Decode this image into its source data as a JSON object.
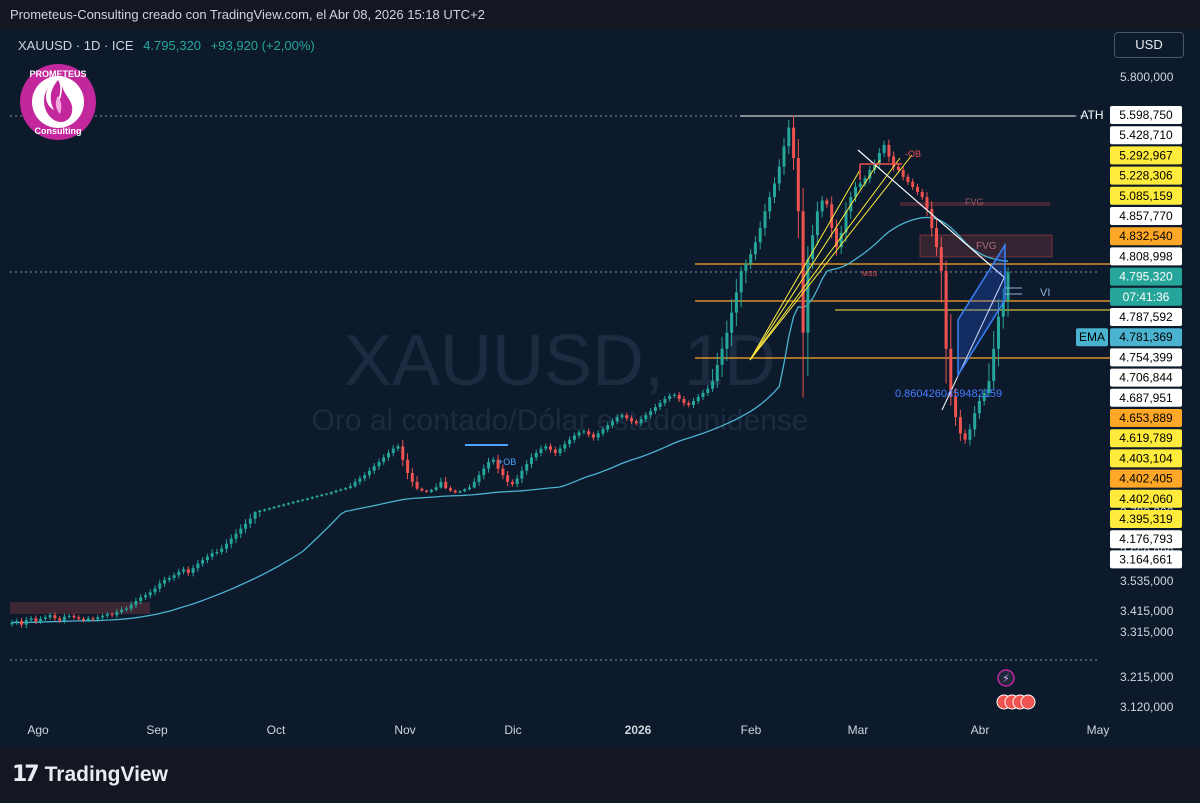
{
  "header": {
    "attribution": "Prometeus-Consulting creado con TradingView.com, el Abr 08, 2026 15:18 UTC+2"
  },
  "symbol": {
    "label": "XAUUSD · 1D · ICE",
    "price": "4.795,320",
    "change": "+93,920 (+2,00%)"
  },
  "currency_button": "USD",
  "logo": {
    "top": "PROMETEUS",
    "bottom": "Consulting"
  },
  "watermark": {
    "title": "XAUUSD, 1D",
    "subtitle": "Oro al contado/Dólar estadounidense"
  },
  "footer": {
    "brand": "TradingView"
  },
  "colors": {
    "bg": "#0c1a2c",
    "up": "#26a69a",
    "down": "#ef5350",
    "ema": "#4ab3cf",
    "orange": "#ffa726",
    "yellow": "#ffeb3b",
    "blue": "#2962ff"
  },
  "chart_data": {
    "type": "candlestick",
    "x_ticks": [
      "Ago",
      "Sep",
      "Oct",
      "Nov",
      "Dic",
      "2026",
      "Feb",
      "Mar",
      "Abr",
      "May"
    ],
    "y_ticks": [
      "5.800,000",
      "3.780,000",
      "3.660,000",
      "3.535,000",
      "3.415,000",
      "3.315,000",
      "3.215,000",
      "3.120,000"
    ],
    "ylim": [
      3120,
      5800
    ],
    "last_close": 4795.32,
    "ema_value": 4781.369,
    "ath": 5598.75,
    "price_labels": [
      {
        "text": "5.598,750",
        "prefix": "ATH",
        "style": "white-dark"
      },
      {
        "text": "5.428,710",
        "style": "white"
      },
      {
        "text": "5.292,967",
        "style": "yellow"
      },
      {
        "text": "5.228,306",
        "style": "yellow"
      },
      {
        "text": "5.085,159",
        "style": "yellow"
      },
      {
        "text": "4.857,770",
        "style": "white"
      },
      {
        "text": "4.832,540",
        "style": "orange"
      },
      {
        "text": "4.808,998",
        "style": "white"
      },
      {
        "text": "4.795,320",
        "style": "green"
      },
      {
        "text": "07:41:36",
        "style": "green-sub"
      },
      {
        "text": "4.787,592",
        "style": "white"
      },
      {
        "text": "4.781,369",
        "prefix": "EMA",
        "style": "teal"
      },
      {
        "text": "4.754,399",
        "style": "white"
      },
      {
        "text": "4.706,844",
        "style": "white"
      },
      {
        "text": "4.687,951",
        "style": "white"
      },
      {
        "text": "4.653,889",
        "style": "orange"
      },
      {
        "text": "4.619,789",
        "style": "yellow"
      },
      {
        "text": "4.403,104",
        "style": "yellow"
      },
      {
        "text": "4.402,405",
        "style": "orange"
      },
      {
        "text": "4.402,060",
        "style": "yellow"
      },
      {
        "text": "4.395,319",
        "style": "yellow"
      },
      {
        "text": "4.176,793",
        "style": "white"
      },
      {
        "text": "3.164,661",
        "style": "white"
      }
    ],
    "annotations": {
      "ob_bear": "-OB",
      "ob_bull": "+OB",
      "fvg": "FVG",
      "mss": "MSS",
      "vi": "VI",
      "fib": "0.8604260459482159"
    },
    "closes": [
      3360,
      3368,
      3350,
      3372,
      3380,
      3365,
      3378,
      3385,
      3395,
      3380,
      3370,
      3388,
      3392,
      3385,
      3378,
      3372,
      3380,
      3375,
      3385,
      3392,
      3400,
      3395,
      3410,
      3420,
      3425,
      3440,
      3455,
      3470,
      3478,
      3490,
      3505,
      3525,
      3540,
      3548,
      3560,
      3575,
      3585,
      3570,
      3590,
      3610,
      3625,
      3640,
      3655,
      3660,
      3670,
      3685,
      3700,
      3715,
      3730,
      3745,
      3760,
      3780,
      3800,
      3820,
      3840,
      3860,
      3880,
      3900,
      3920,
      3940,
      3960,
      3975,
      3995,
      4015,
      4035,
      4055,
      4070,
      4095,
      4120,
      4140,
      4160,
      4180,
      4200,
      4215,
      4230,
      4250,
      4270,
      4290,
      4310,
      4330,
      4350,
      4360,
      4300,
      4240,
      4200,
      4150,
      4120,
      4100,
      4130,
      4170,
      4200,
      4160,
      4120,
      4090,
      4110,
      4140,
      4170,
      4200,
      4230,
      4260,
      4290,
      4300,
      4260,
      4230,
      4200,
      4190,
      4215,
      4250,
      4280,
      4310,
      4330,
      4350,
      4360,
      4345,
      4330,
      4350,
      4370,
      4390,
      4410,
      4425,
      4430,
      4415,
      4400,
      4420,
      4440,
      4460,
      4480,
      4500,
      4510,
      4495,
      4480,
      4470,
      4490,
      4510,
      4530,
      4550,
      4570,
      4590,
      4605,
      4610,
      4590,
      4570,
      4560,
      4580,
      4600,
      4620,
      4640,
      4660,
      4680,
      4700,
      4720,
      4745,
      4770,
      4800,
      4830,
      4870,
      4920,
      4980,
      5050,
      5120,
      5200,
      5300,
      5420,
      5530,
      5350,
      5050,
      4720,
      4850,
      4950,
      5050,
      5100,
      5080,
      4980,
      4900,
      4960,
      5050,
      5120,
      5180,
      5200,
      5230,
      5280,
      5320,
      5380,
      5428,
      5360,
      5300,
      5280,
      5240,
      5210,
      5180,
      5150,
      5120,
      5060,
      4980,
      4900,
      4800,
      4700,
      4600,
      4500,
      4420,
      4390,
      4440,
      4520,
      4580,
      4620,
      4660,
      4700,
      4740,
      4760,
      4795
    ]
  }
}
